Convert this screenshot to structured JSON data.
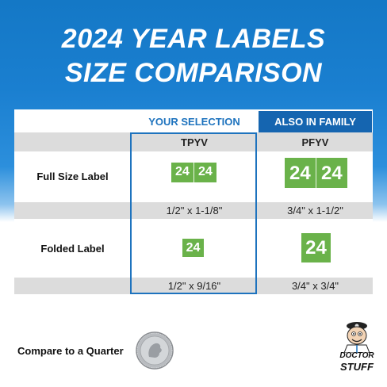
{
  "title_line1": "2024 YEAR LABELS",
  "title_line2": "SIZE COMPARISON",
  "columns": {
    "your_selection": "YOUR SELECTION",
    "also_in_family": "ALSO IN FAMILY"
  },
  "products": {
    "selected": "TPYV",
    "family": "PFYV"
  },
  "rows": {
    "full": {
      "label": "Full Size Label",
      "selected_size": "1/2\" x 1-1/8\"",
      "family_size": "3/4\" x 1-1/2\""
    },
    "folded": {
      "label": "Folded Label",
      "selected_size": "1/2\" x 9/16\"",
      "family_size": "3/4\" x 3/4\""
    }
  },
  "label_text": "24",
  "label_color": "#6ab24a",
  "accent_color": "#1e73be",
  "quarter_text": "Compare to a Quarter",
  "logo": {
    "line1": "DOCTOR",
    "line2": "STUFF",
    "icon": "doctor-mascot-icon"
  },
  "quarter_icon": "quarter-coin-icon"
}
